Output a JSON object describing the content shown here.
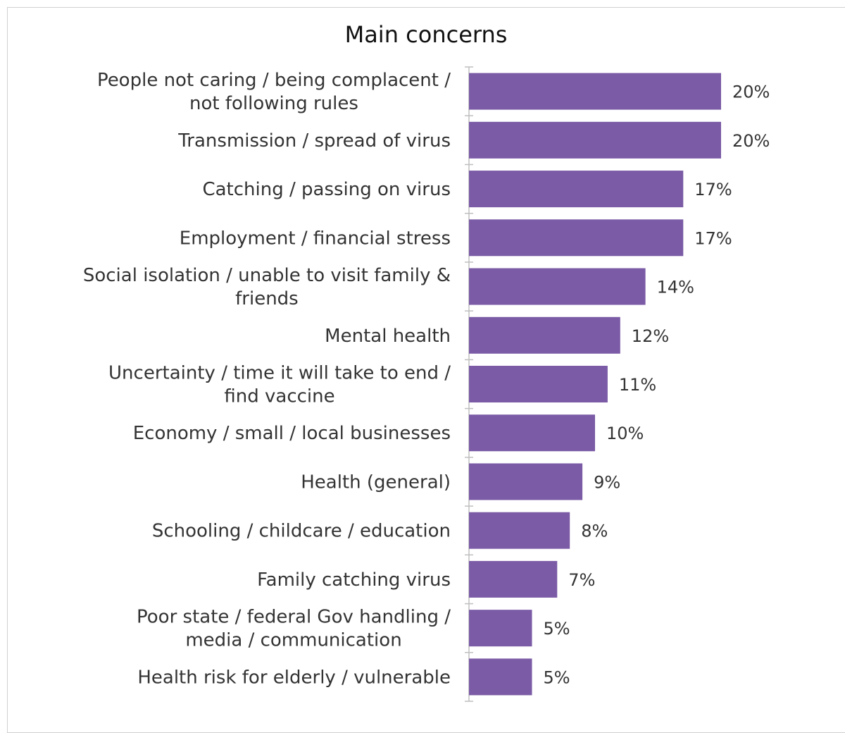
{
  "chart_data": {
    "type": "bar",
    "orientation": "horizontal",
    "title": "Main concerns",
    "categories": [
      [
        "People not caring / being complacent /",
        "not following rules"
      ],
      [
        "Transmission / spread of virus"
      ],
      [
        "Catching / passing on  virus"
      ],
      [
        "Employment / financial stress"
      ],
      [
        "Social isolation / unable to visit family &",
        "friends"
      ],
      [
        "Mental health"
      ],
      [
        "Uncertainty / time it will take to end /",
        "find vaccine"
      ],
      [
        "Economy / small / local businesses"
      ],
      [
        "Health (general)"
      ],
      [
        "Schooling / childcare / education"
      ],
      [
        "Family catching virus"
      ],
      [
        "Poor state / federal Gov handling /",
        "media / communication"
      ],
      [
        "Health risk for elderly / vulnerable"
      ]
    ],
    "values": [
      20,
      20,
      17,
      17,
      14,
      12,
      11,
      10,
      9,
      8,
      7,
      5,
      5
    ],
    "value_labels": [
      "20%",
      "20%",
      "17%",
      "17%",
      "14%",
      "12%",
      "11%",
      "10%",
      "9%",
      "8%",
      "7%",
      "5%",
      "5%"
    ],
    "bar_color": "#7b5ba6",
    "axis_color": "#bfbfbf",
    "xlim": [
      0,
      20
    ],
    "grid": false,
    "legend": "none"
  }
}
